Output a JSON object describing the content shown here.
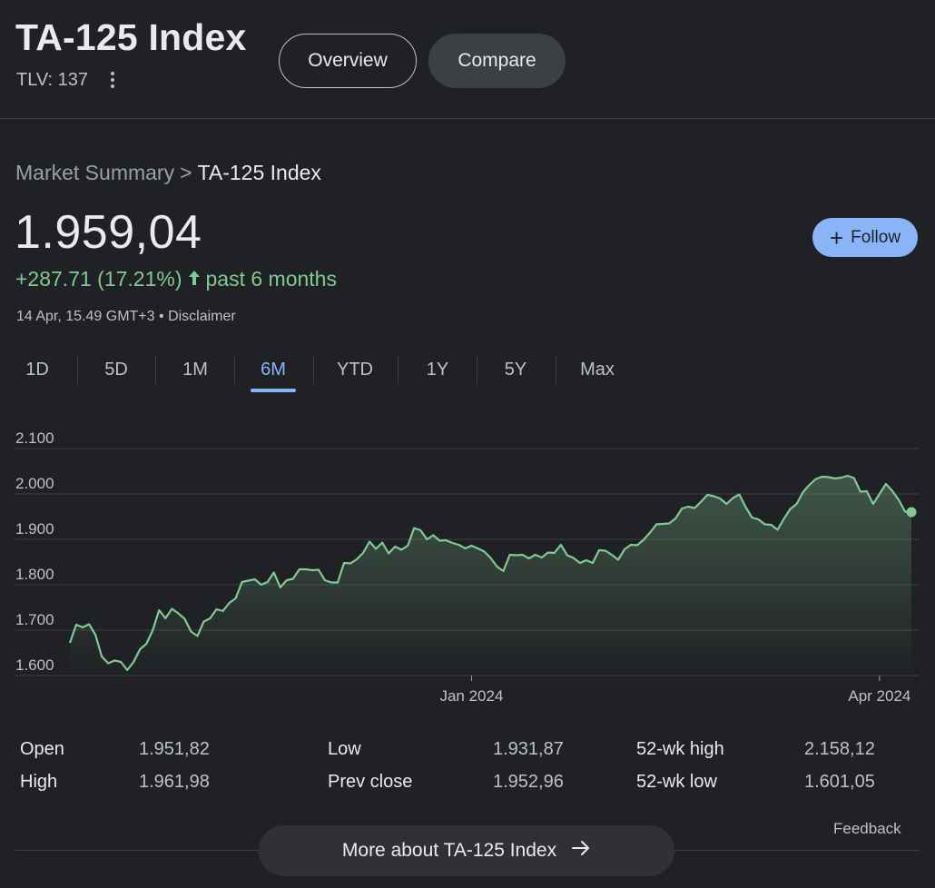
{
  "header": {
    "title": "TA-125 Index",
    "ticker": "TLV: 137",
    "more_options_icon": "vertical-dots-icon",
    "tabs": [
      {
        "label": "Overview",
        "active": true
      },
      {
        "label": "Compare",
        "active": false
      }
    ]
  },
  "breadcrumb": {
    "parent": "Market Summary",
    "separator": ">",
    "current": "TA-125 Index"
  },
  "quote": {
    "price": "1.959,04",
    "change": "+287.71 (17.21%)",
    "change_icon": "arrow-up-icon",
    "period": "past 6 months",
    "timestamp": "14 Apr, 15.49 GMT+3",
    "dot": "•",
    "disclaimer": "Disclaimer",
    "follow_label": "Follow",
    "follow_icon": "plus-icon"
  },
  "ranges": [
    "1D",
    "5D",
    "1M",
    "6M",
    "YTD",
    "1Y",
    "5Y",
    "Max"
  ],
  "active_range": "6M",
  "chart_data": {
    "type": "area",
    "ylim": [
      1600,
      2100
    ],
    "y_ticks": [
      2100,
      2000,
      1900,
      1800,
      1700,
      1600
    ],
    "y_tick_labels": [
      "2.100",
      "2.000",
      "1.900",
      "1.800",
      "1.700",
      "1.600"
    ],
    "x_tick_labels": [
      {
        "label": "Jan 2024",
        "index": 63
      },
      {
        "label": "Apr 2024",
        "index": 127
      }
    ],
    "grid": true,
    "series": [
      {
        "values": [
          1672,
          1712,
          1706,
          1713,
          1690,
          1642,
          1627,
          1633,
          1630,
          1612,
          1630,
          1658,
          1670,
          1700,
          1744,
          1726,
          1747,
          1737,
          1725,
          1697,
          1687,
          1719,
          1726,
          1746,
          1742,
          1760,
          1770,
          1806,
          1809,
          1812,
          1800,
          1806,
          1827,
          1794,
          1810,
          1813,
          1834,
          1834,
          1832,
          1833,
          1810,
          1805,
          1805,
          1848,
          1847,
          1856,
          1870,
          1895,
          1879,
          1893,
          1869,
          1884,
          1877,
          1886,
          1925,
          1920,
          1900,
          1909,
          1897,
          1898,
          1892,
          1888,
          1880,
          1886,
          1880,
          1873,
          1859,
          1840,
          1830,
          1866,
          1865,
          1866,
          1858,
          1866,
          1860,
          1871,
          1870,
          1888,
          1865,
          1859,
          1848,
          1854,
          1848,
          1876,
          1875,
          1866,
          1855,
          1878,
          1888,
          1887,
          1899,
          1915,
          1933,
          1934,
          1935,
          1946,
          1968,
          1972,
          1969,
          1983,
          1998,
          1995,
          1990,
          1978,
          1991,
          1999,
          1971,
          1948,
          1944,
          1933,
          1932,
          1921,
          1945,
          1967,
          1978,
          2004,
          2020,
          2033,
          2038,
          2037,
          2034,
          2036,
          2040,
          2035,
          2005,
          2006,
          1978,
          2000,
          2022,
          2007,
          1987,
          1961,
          1960
        ]
      }
    ],
    "line_color": "#81c995",
    "fill_color": "#81c995"
  },
  "stats": [
    {
      "label": "Open",
      "value": "1.951,82"
    },
    {
      "label": "High",
      "value": "1.961,98"
    },
    {
      "label": "Low",
      "value": "1.931,87"
    },
    {
      "label": "Prev close",
      "value": "1.952,96"
    },
    {
      "label": "52-wk high",
      "value": "2.158,12"
    },
    {
      "label": "52-wk low",
      "value": "1.601,05"
    }
  ],
  "footer": {
    "feedback": "Feedback",
    "more_label": "More about TA-125 Index",
    "more_icon": "arrow-right-icon"
  },
  "colors": {
    "background": "#202124",
    "accent_blue": "#8ab4f8",
    "positive_green": "#81c995"
  }
}
